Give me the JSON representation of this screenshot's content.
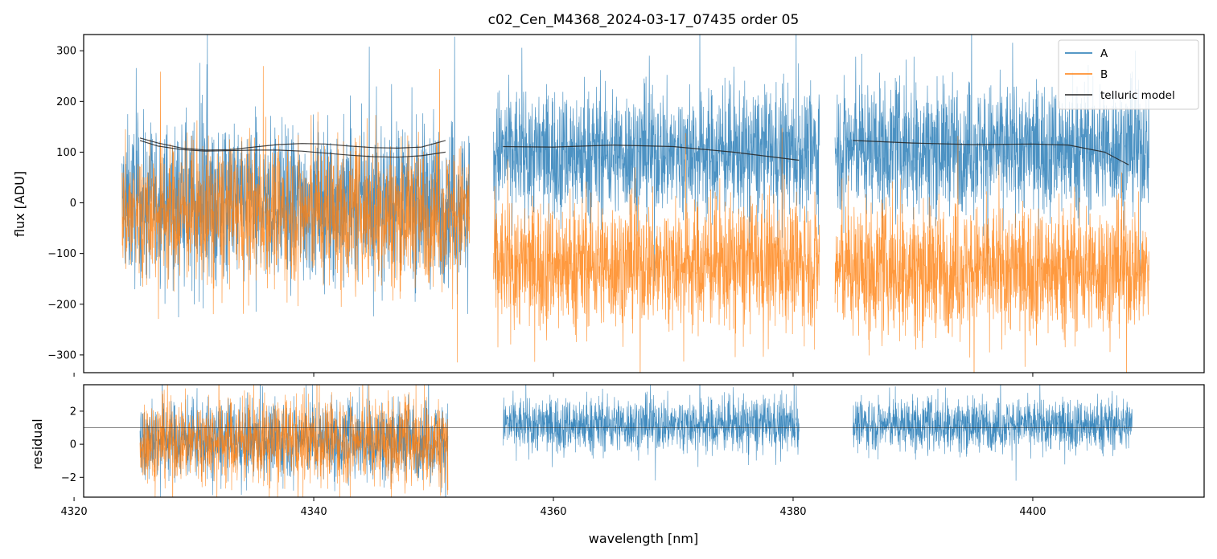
{
  "title": "c02_Cen_M4368_2024-03-17_07435  order 05",
  "colors": {
    "A": "#1f77b4",
    "B": "#ff7f0e",
    "telluric": "#222222"
  },
  "chart_data": [
    {
      "type": "line",
      "panel": "flux",
      "xlabel": "",
      "ylabel": "flux [ADU]",
      "xlim": [
        4320.8,
        4414.3
      ],
      "ylim": [
        -335,
        332
      ],
      "yticks": [
        300,
        200,
        100,
        0,
        -100,
        -200,
        -300
      ],
      "ytick_labels": [
        "300",
        "200",
        "100",
        "0",
        "−100",
        "−200",
        "−300"
      ],
      "xticks": [
        4320,
        4340,
        4360,
        4380,
        4400
      ],
      "legend": {
        "placement": "top-right",
        "entries": [
          "A",
          "B",
          "telluric model"
        ]
      },
      "segments": [
        {
          "x_range": [
            4324.0,
            4353.0
          ],
          "A_center": 0,
          "A_spread": 150,
          "B_center": -20,
          "B_spread": 130
        },
        {
          "x_range": [
            4355.0,
            4382.2
          ],
          "A_center": 100,
          "A_spread": 120,
          "B_center": -120,
          "B_spread": 120
        },
        {
          "x_range": [
            4383.5,
            4409.7
          ],
          "A_center": 110,
          "A_spread": 120,
          "B_center": -130,
          "B_spread": 120
        }
      ],
      "series": [
        {
          "name": "telluric model",
          "curves": [
            {
              "x": [
                4325.5,
                4327.0,
                4329.0,
                4331.0,
                4333.0,
                4335.0,
                4337.0,
                4339.0,
                4341.0,
                4343.0,
                4345.0,
                4347.0,
                4349.0,
                4351.0
              ],
              "y": [
                128,
                118,
                108,
                104,
                105,
                110,
                115,
                117,
                116,
                112,
                109,
                108,
                110,
                123
              ]
            },
            {
              "x": [
                4325.5,
                4327.0,
                4329.0,
                4331.0,
                4333.0,
                4335.0,
                4337.0,
                4339.0,
                4341.0,
                4343.0,
                4345.0,
                4347.0,
                4349.0,
                4351.0
              ],
              "y": [
                123,
                112,
                105,
                102,
                103,
                104,
                104,
                102,
                98,
                94,
                91,
                90,
                93,
                100
              ]
            },
            {
              "x": [
                4355.8,
                4360.0,
                4365.0,
                4370.0,
                4375.0,
                4380.5
              ],
              "y": [
                111,
                110,
                114,
                111,
                100,
                84
              ]
            },
            {
              "x": [
                4385.0,
                4390.0,
                4395.0,
                4400.0,
                4403.0,
                4406.0,
                4408.0
              ],
              "y": [
                123,
                118,
                115,
                116,
                114,
                100,
                75
              ]
            }
          ]
        }
      ]
    },
    {
      "type": "line",
      "panel": "residual",
      "xlabel": "wavelength [nm]",
      "ylabel": "residual",
      "xlim": [
        4320.8,
        4414.3
      ],
      "ylim": [
        -3.2,
        3.6
      ],
      "yticks": [
        2,
        0,
        -2
      ],
      "ytick_labels": [
        "2",
        "0",
        "−2"
      ],
      "xticks": [
        4320,
        4340,
        4360,
        4380,
        4400
      ],
      "xtick_labels": [
        "4320",
        "4340",
        "4360",
        "4380",
        "4400"
      ],
      "reference_line": 1.0,
      "segments": [
        {
          "x_range": [
            4325.5,
            4351.2
          ],
          "A_center": 0.3,
          "A_spread": 2.2,
          "B_center": 0.2,
          "B_spread": 2.5
        },
        {
          "x_range": [
            4355.8,
            4380.5
          ],
          "A_center": 1.2,
          "A_spread": 1.6
        },
        {
          "x_range": [
            4385.0,
            4408.3
          ],
          "A_center": 1.2,
          "A_spread": 1.5
        }
      ]
    }
  ]
}
